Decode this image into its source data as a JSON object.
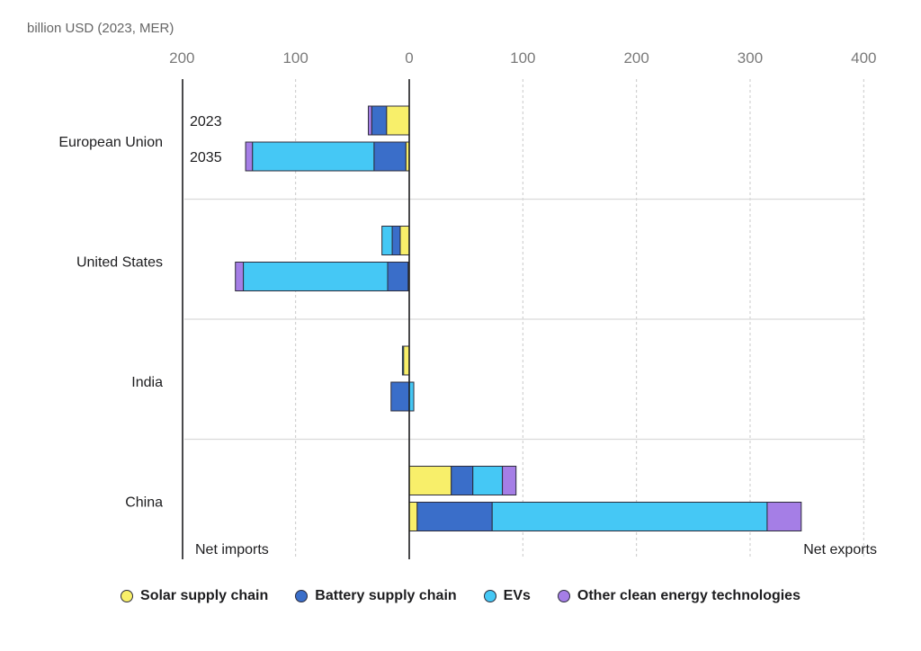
{
  "colors": {
    "solar": "#f8ef6a",
    "battery": "#3a6ec9",
    "ev": "#45c8f5",
    "other": "#a57ee6"
  },
  "legend": [
    {
      "key": "solar",
      "label": "Solar supply chain"
    },
    {
      "key": "battery",
      "label": "Battery supply chain"
    },
    {
      "key": "ev",
      "label": "EVs"
    },
    {
      "key": "other",
      "label": "Other clean energy technologies"
    }
  ],
  "chart_data": {
    "type": "bar",
    "orientation": "horizontal",
    "stacked": true,
    "unit_label": "billion USD (2023, MER)",
    "xlim": [
      -200,
      400
    ],
    "ticks": [
      {
        "value": -200,
        "label": "200"
      },
      {
        "value": -100,
        "label": "100"
      },
      {
        "value": 0,
        "label": "0"
      },
      {
        "value": 100,
        "label": "100"
      },
      {
        "value": 200,
        "label": "200"
      },
      {
        "value": 300,
        "label": "300"
      },
      {
        "value": 400,
        "label": "400"
      }
    ],
    "grid": true,
    "left_note": "Net imports",
    "right_note": "Net exports",
    "series_keys": [
      "solar",
      "battery",
      "ev",
      "other"
    ],
    "years": [
      "2023",
      "2035"
    ],
    "categories": [
      {
        "name": "European Union",
        "bars": [
          {
            "year": "2023",
            "solar": -20,
            "battery": -13,
            "ev": 0,
            "other": -3
          },
          {
            "year": "2035",
            "solar": -3,
            "battery": -28,
            "ev": -107,
            "other": -6
          }
        ]
      },
      {
        "name": "United States",
        "bars": [
          {
            "year": "2023",
            "solar": -8,
            "battery": -7,
            "ev": -9,
            "other": 0
          },
          {
            "year": "2035",
            "solar": -1,
            "battery": -18,
            "ev": -127,
            "other": -7
          }
        ]
      },
      {
        "name": "India",
        "bars": [
          {
            "year": "2023",
            "solar": -5,
            "battery": 0,
            "ev": -1,
            "other": 0
          },
          {
            "year": "2035",
            "solar": 0,
            "battery": -16,
            "ev": 4,
            "other": 0
          }
        ]
      },
      {
        "name": "China",
        "bars": [
          {
            "year": "2023",
            "solar": 37,
            "battery": 19,
            "ev": 26,
            "other": 12
          },
          {
            "year": "2035",
            "solar": 7,
            "battery": 66,
            "ev": 242,
            "other": 30
          }
        ]
      }
    ]
  }
}
